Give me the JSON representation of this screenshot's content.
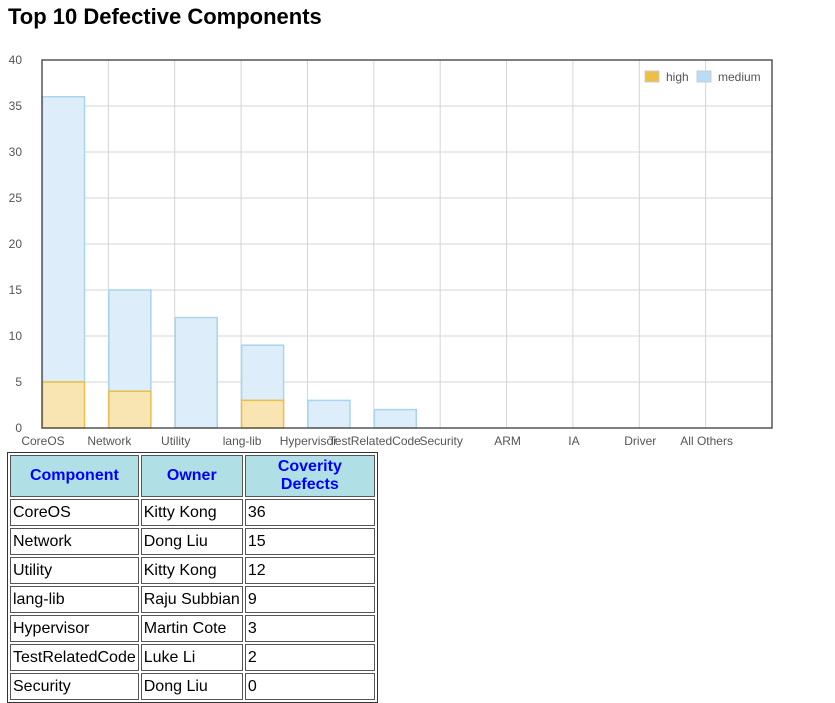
{
  "page": {
    "title": "Top 10 Defective Components"
  },
  "chart_data": {
    "type": "bar",
    "stacked": true,
    "categories": [
      "CoreOS",
      "Network",
      "Utility",
      "lang-lib",
      "Hypervisor",
      "TestRelatedCode",
      "Security",
      "ARM",
      "IA",
      "Driver",
      "All Others"
    ],
    "series": [
      {
        "name": "high",
        "values": [
          5,
          4,
          0,
          3,
          0,
          0,
          0,
          0,
          0,
          0,
          0
        ]
      },
      {
        "name": "medium",
        "values": [
          31,
          11,
          12,
          6,
          3,
          2,
          0,
          0,
          0,
          0,
          0
        ]
      }
    ],
    "ylim": [
      0,
      40
    ],
    "yticks": [
      0,
      5,
      10,
      15,
      20,
      25,
      30,
      35,
      40
    ],
    "grid": true,
    "legend": "top-right",
    "colors": {
      "high_fill": "#f9e5b2",
      "high_stroke": "#e8bf4a",
      "high_legend": "#ebc045",
      "medium_fill": "#ddeefa",
      "medium_stroke": "#a9d4ee",
      "medium_legend": "#b8dcf6"
    }
  },
  "table": {
    "headers": [
      "Component",
      "Owner",
      "Coverity Defects"
    ],
    "rows": [
      [
        "CoreOS",
        "Kitty Kong",
        "36"
      ],
      [
        "Network",
        "Dong Liu",
        "15"
      ],
      [
        "Utility",
        "Kitty Kong",
        "12"
      ],
      [
        "lang-lib",
        "Raju Subbian",
        "9"
      ],
      [
        "Hypervisor",
        "Martin Cote",
        "3"
      ],
      [
        "TestRelatedCode",
        "Luke Li",
        "2"
      ],
      [
        "Security",
        "Dong Liu",
        "0"
      ]
    ]
  }
}
